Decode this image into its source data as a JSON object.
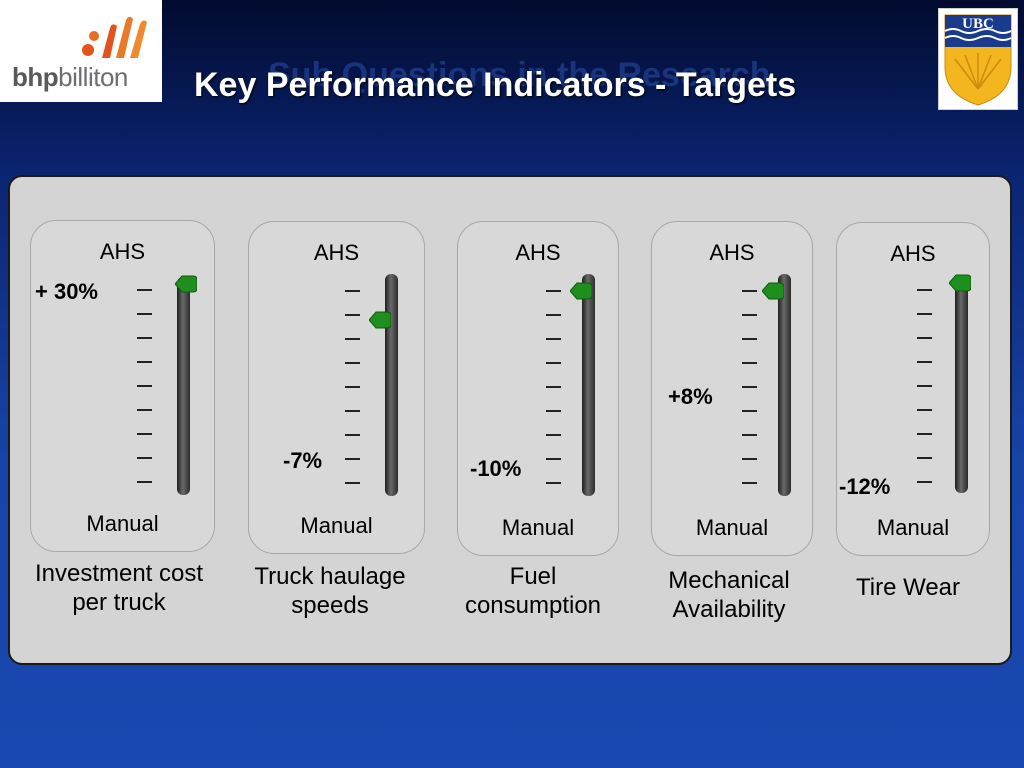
{
  "slide": {
    "title": "Key Performance Indicators - Targets",
    "ghost_title": "Sub Questions in the Research"
  },
  "logos": {
    "left": {
      "name": "bhpbilliton",
      "word_bold": "bhp",
      "word_rest": "billiton"
    },
    "right": {
      "name": "UBC",
      "text": "UBC"
    }
  },
  "gauges": [
    {
      "top_label": "AHS",
      "bottom_label": "Manual",
      "value_label": "+ 30%",
      "caption": [
        "Investment cost",
        "per truck"
      ]
    },
    {
      "top_label": "AHS",
      "bottom_label": "Manual",
      "value_label": "-7%",
      "caption": [
        "Truck haulage",
        "speeds"
      ]
    },
    {
      "top_label": "AHS",
      "bottom_label": "Manual",
      "value_label": "-10%",
      "caption": [
        "Fuel",
        "consumption"
      ]
    },
    {
      "top_label": "AHS",
      "bottom_label": "Manual",
      "value_label": "+8%",
      "caption": [
        "Mechanical",
        "Availability"
      ]
    },
    {
      "top_label": "AHS",
      "bottom_label": "Manual",
      "value_label": "-12%",
      "caption": [
        "Tire Wear"
      ]
    }
  ],
  "colors": {
    "marker": "#1e8f1e",
    "panel": "#d4d4d4",
    "title": "#ffffff"
  }
}
